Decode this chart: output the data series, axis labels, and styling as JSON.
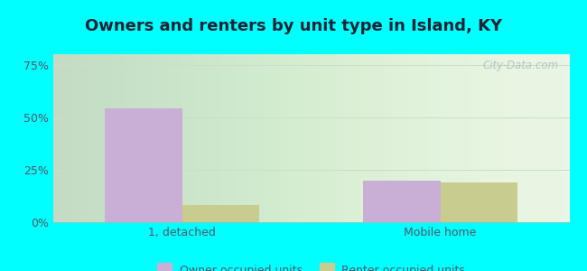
{
  "title": "Owners and renters by unit type in Island, KY",
  "categories": [
    "1, detached",
    "Mobile home"
  ],
  "owner_values": [
    54,
    20
  ],
  "renter_values": [
    8,
    19
  ],
  "owner_color": "#c9aed6",
  "renter_color": "#c8cc8e",
  "bg_top_color": "#f0f8ee",
  "bg_bottom_color": "#e0f0d8",
  "outer_bg": "#00ffff",
  "yticks": [
    0,
    25,
    50,
    75
  ],
  "ytick_labels": [
    "0%",
    "25%",
    "50%",
    "75%"
  ],
  "ylim": [
    0,
    80
  ],
  "bar_width": 0.3,
  "legend_owner": "Owner occupied units",
  "legend_renter": "Renter occupied units",
  "watermark": "City-Data.com",
  "grid_color": "#d8e8d0",
  "title_fontsize": 13,
  "tick_fontsize": 9,
  "legend_fontsize": 9,
  "tick_color": "#555566"
}
